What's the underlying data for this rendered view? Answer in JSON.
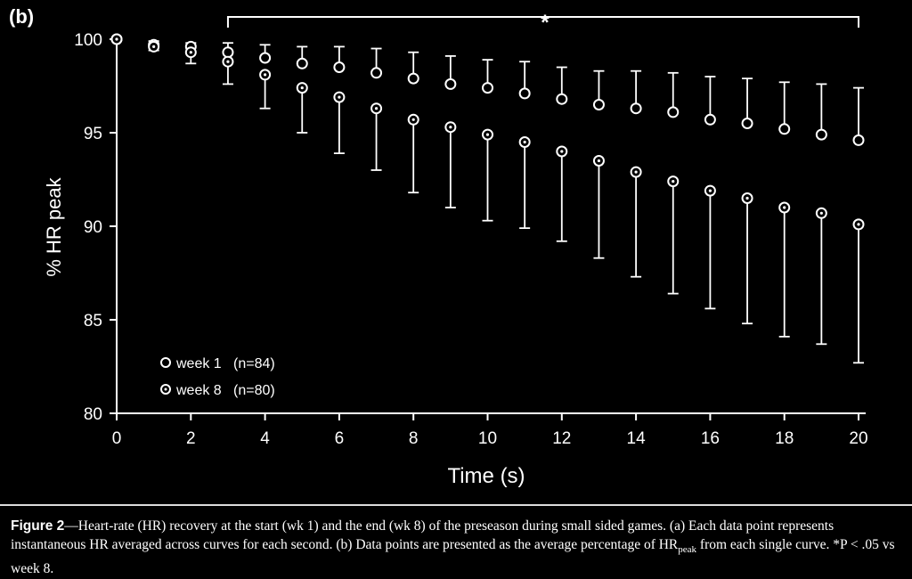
{
  "panel_label": "(b)",
  "caption": {
    "fig_label": "Figure 2",
    "text_1": "—Heart-rate (HR) recovery at the start (wk 1) and the end (wk 8) of the preseason during small sided games. (a) Each data point represents instantaneous HR averaged across curves for each second. (b) Data points are presented as the average percentage of HR",
    "subscript": "peak",
    "text_2": " from each single curve. *P < .05 vs week 8."
  },
  "chart_data": {
    "type": "scatter",
    "xlabel": "Time (s)",
    "ylabel": "% HR peak",
    "xlim": [
      0,
      20
    ],
    "ylim": [
      80,
      100
    ],
    "xticks": [
      "0",
      "2",
      "4",
      "6",
      "8",
      "10",
      "12",
      "14",
      "16",
      "18",
      "20"
    ],
    "yticks": [
      "80",
      "85",
      "90",
      "95",
      "100"
    ],
    "significance": {
      "label": "*",
      "x_start": 3,
      "x_end": 20
    },
    "legend_position": "bottom-left",
    "series": [
      {
        "name": "week 1",
        "n_label": "(n=84)",
        "marker": "open-circle",
        "error_direction": "up",
        "x": [
          0,
          1,
          2,
          3,
          4,
          5,
          6,
          7,
          8,
          9,
          10,
          11,
          12,
          13,
          14,
          15,
          16,
          17,
          18,
          19,
          20
        ],
        "y": [
          100,
          99.7,
          99.6,
          99.3,
          99.0,
          98.7,
          98.5,
          98.2,
          97.9,
          97.6,
          97.4,
          97.1,
          96.8,
          96.5,
          96.3,
          96.1,
          95.7,
          95.5,
          95.2,
          94.9,
          94.6
        ],
        "err_end": [
          100,
          99.9,
          99.8,
          99.8,
          99.7,
          99.6,
          99.6,
          99.5,
          99.3,
          99.1,
          98.9,
          98.8,
          98.5,
          98.3,
          98.3,
          98.2,
          98.0,
          97.9,
          97.7,
          97.6,
          97.4
        ]
      },
      {
        "name": "week 8",
        "n_label": "(n=80)",
        "marker": "dotted-circle",
        "error_direction": "down",
        "x": [
          0,
          1,
          2,
          3,
          4,
          5,
          6,
          7,
          8,
          9,
          10,
          11,
          12,
          13,
          14,
          15,
          16,
          17,
          18,
          19,
          20
        ],
        "y": [
          100,
          99.6,
          99.3,
          98.8,
          98.1,
          97.4,
          96.9,
          96.3,
          95.7,
          95.3,
          94.9,
          94.5,
          94.0,
          93.5,
          92.9,
          92.4,
          91.9,
          91.5,
          91.0,
          90.7,
          90.1
        ],
        "err_end": [
          100,
          99.4,
          98.7,
          97.6,
          96.3,
          95.0,
          93.9,
          93.0,
          91.8,
          91.0,
          90.3,
          89.9,
          89.2,
          88.3,
          87.3,
          86.4,
          85.6,
          84.8,
          84.1,
          83.7,
          82.7
        ]
      }
    ]
  }
}
